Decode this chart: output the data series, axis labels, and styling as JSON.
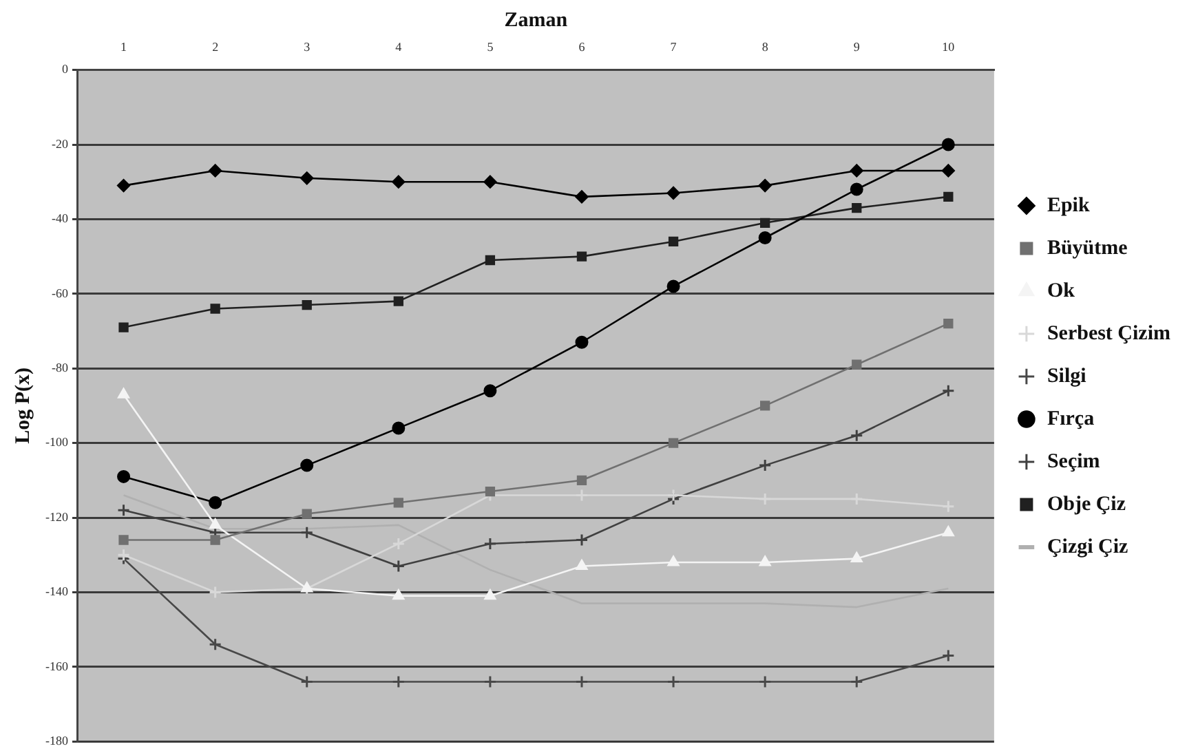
{
  "chart_data": {
    "type": "line",
    "xlabel": "Zaman",
    "ylabel": "Log P(x)",
    "categories": [
      "1",
      "2",
      "3",
      "4",
      "5",
      "6",
      "7",
      "8",
      "9",
      "10"
    ],
    "ylim": [
      -180,
      0
    ],
    "yticks": [
      0,
      -20,
      -40,
      -60,
      -80,
      -100,
      -120,
      -140,
      -160,
      -180
    ],
    "grid": "y",
    "legend": "right",
    "line_style": "solid",
    "series": [
      {
        "name": "Epik",
        "color": "#000000",
        "marker": "diamond",
        "values": [
          -31,
          -27,
          -29,
          -30,
          -30,
          -34,
          -33,
          -31,
          -27,
          -27
        ]
      },
      {
        "name": "Büyütme",
        "color": "#707070",
        "marker": "square",
        "values": [
          -126,
          -126,
          -119,
          -116,
          -113,
          -110,
          -100,
          -90,
          -79,
          -68
        ]
      },
      {
        "name": "Ok",
        "color": "#f4f4f4",
        "marker": "triangle",
        "values": [
          -87,
          -122,
          -139,
          -141,
          -141,
          -133,
          -132,
          -132,
          -131,
          -124
        ]
      },
      {
        "name": "Serbest Çizim",
        "color": "#d8d8d8",
        "marker": "cross",
        "values": [
          -130,
          -140,
          -139,
          -127,
          -114,
          -114,
          -114,
          -115,
          -115,
          -117
        ]
      },
      {
        "name": "Silgi",
        "color": "#484848",
        "marker": "cross",
        "values": [
          -131,
          -154,
          -164,
          -164,
          -164,
          -164,
          -164,
          -164,
          -164,
          -157
        ]
      },
      {
        "name": "Fırça",
        "color": "#000000",
        "marker": "circle",
        "values": [
          -109,
          -116,
          -106,
          -96,
          -86,
          -73,
          -58,
          -45,
          -32,
          -20
        ]
      },
      {
        "name": "Seçim",
        "color": "#404040",
        "marker": "cross",
        "values": [
          -118,
          -124,
          -124,
          -133,
          -127,
          -126,
          -115,
          -106,
          -98,
          -86
        ]
      },
      {
        "name": "Obje Çiz",
        "color": "#202020",
        "marker": "square",
        "values": [
          -69,
          -64,
          -63,
          -62,
          -51,
          -50,
          -46,
          -41,
          -37,
          -34
        ]
      },
      {
        "name": "Çizgi Çiz",
        "color": "#b0b0b0",
        "marker": "none",
        "values": [
          -114,
          -123,
          -123,
          -122,
          -134,
          -143,
          -143,
          -143,
          -144,
          -139
        ]
      }
    ]
  }
}
